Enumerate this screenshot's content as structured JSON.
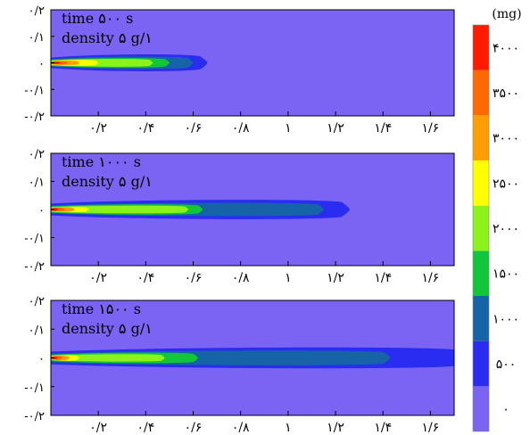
{
  "chart_data": [
    {
      "type": "heatmap",
      "title_lines": [
        "time ۵۰۰ s",
        "density ۵ g/۱"
      ],
      "time_s": 500,
      "density": "۵ g/۱",
      "xlim": [
        0,
        1.7
      ],
      "ylim": [
        -0.2,
        0.2
      ],
      "xticks": [
        0.2,
        0.4,
        0.6,
        0.8,
        1.0,
        1.2,
        1.4,
        1.6
      ],
      "xtick_labels": [
        "۰/۲",
        "۰/۴",
        "۰/۶",
        "۰/۸",
        "۱",
        "۱/۲",
        "۱/۴",
        "۱/۶"
      ],
      "yticks": [
        0.2,
        0.1,
        0,
        -0.1,
        -0.2
      ],
      "ytick_labels": [
        "۰/۲",
        "۰/۱",
        "۰",
        "-۰/۱",
        "-۰/۲"
      ],
      "plume": [
        {
          "level": 500,
          "x_end": 0.66,
          "half_width": 0.035
        },
        {
          "level": 1000,
          "x_end": 0.6,
          "half_width": 0.026
        },
        {
          "level": 1500,
          "x_end": 0.5,
          "half_width": 0.02
        },
        {
          "level": 2000,
          "x_end": 0.43,
          "half_width": 0.016
        },
        {
          "level": 2500,
          "x_end": 0.2,
          "half_width": 0.012
        },
        {
          "level": 3000,
          "x_end": 0.12,
          "half_width": 0.009
        },
        {
          "level": 3500,
          "x_end": 0.07,
          "half_width": 0.007
        },
        {
          "level": 4000,
          "x_end": 0.04,
          "half_width": 0.005
        }
      ]
    },
    {
      "type": "heatmap",
      "title_lines": [
        "time ۱۰۰۰ s",
        "density ۵ g/۱"
      ],
      "time_s": 1000,
      "density": "۵ g/۱",
      "xlim": [
        0,
        1.7
      ],
      "ylim": [
        -0.2,
        0.2
      ],
      "xticks": [
        0.2,
        0.4,
        0.6,
        0.8,
        1.0,
        1.2,
        1.4,
        1.6
      ],
      "xtick_labels": [
        "۰/۲",
        "۰/۴",
        "۰/۶",
        "۰/۸",
        "۱",
        "۱/۲",
        "۱/۴",
        "۱/۶"
      ],
      "yticks": [
        0.2,
        0.1,
        0,
        -0.1,
        -0.2
      ],
      "ytick_labels": [
        "۰/۲",
        "۰/۱",
        "۰",
        "-۰/۱",
        "-۰/۲"
      ],
      "plume": [
        {
          "level": 500,
          "x_end": 1.26,
          "half_width": 0.038
        },
        {
          "level": 1000,
          "x_end": 1.15,
          "half_width": 0.026
        },
        {
          "level": 1500,
          "x_end": 0.64,
          "half_width": 0.02
        },
        {
          "level": 2000,
          "x_end": 0.58,
          "half_width": 0.015
        },
        {
          "level": 2500,
          "x_end": 0.16,
          "half_width": 0.011
        },
        {
          "level": 3000,
          "x_end": 0.1,
          "half_width": 0.009
        },
        {
          "level": 3500,
          "x_end": 0.06,
          "half_width": 0.007
        },
        {
          "level": 4000,
          "x_end": 0.03,
          "half_width": 0.005
        }
      ]
    },
    {
      "type": "heatmap",
      "title_lines": [
        "time ۱۵۰۰ s",
        "density ۵ g/۱"
      ],
      "time_s": 1500,
      "density": "۵ g/۱",
      "xlim": [
        0,
        1.7
      ],
      "ylim": [
        -0.2,
        0.2
      ],
      "xticks": [
        0.2,
        0.4,
        0.6,
        0.8,
        1.0,
        1.2,
        1.4,
        1.6
      ],
      "xtick_labels": [
        "۰/۲",
        "۰/۴",
        "۰/۶",
        "۰/۸",
        "۱",
        "۱/۲",
        "۱/۴",
        "۱/۶"
      ],
      "yticks": [
        0.2,
        0.1,
        0,
        -0.1,
        -0.2
      ],
      "ytick_labels": [
        "۰/۲",
        "۰/۱",
        "۰",
        "-۰/۱",
        "-۰/۲"
      ],
      "plume": [
        {
          "level": 500,
          "x_end": 1.74,
          "half_width": 0.04
        },
        {
          "level": 1000,
          "x_end": 1.43,
          "half_width": 0.028
        },
        {
          "level": 1500,
          "x_end": 0.62,
          "half_width": 0.02
        },
        {
          "level": 2000,
          "x_end": 0.48,
          "half_width": 0.014
        },
        {
          "level": 2500,
          "x_end": 0.12,
          "half_width": 0.011
        },
        {
          "level": 3000,
          "x_end": 0.08,
          "half_width": 0.009
        },
        {
          "level": 3500,
          "x_end": 0.05,
          "half_width": 0.007
        },
        {
          "level": 4000,
          "x_end": 0.03,
          "half_width": 0.005
        }
      ]
    }
  ],
  "colorbar": {
    "unit": "(mg)",
    "labels": [
      "۴۰۰۰",
      "۳۵۰۰",
      "۳۰۰۰",
      "۲۵۰۰",
      "۲۰۰۰",
      "۱۵۰۰",
      "۱۰۰۰",
      "۵۰۰",
      "۰"
    ],
    "label_values": [
      4000,
      3500,
      3000,
      2500,
      2000,
      1500,
      1000,
      500,
      0
    ],
    "levels": [
      0,
      500,
      1000,
      1500,
      2000,
      2500,
      3000,
      3500,
      4000,
      4500
    ],
    "colors": [
      "#7b64f4",
      "#2a2cf2",
      "#1663a8",
      "#12c63c",
      "#8cf21a",
      "#ffff00",
      "#ff9e00",
      "#ff6a00",
      "#ff1a00",
      "#ff1a00"
    ]
  },
  "background_color": "#7b64f4"
}
